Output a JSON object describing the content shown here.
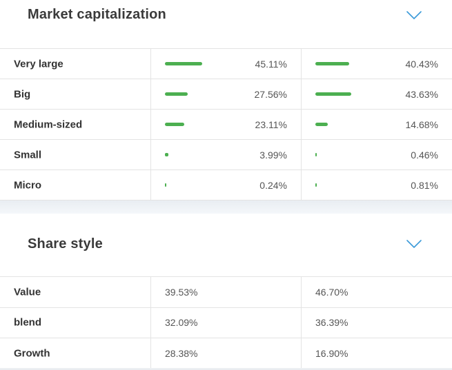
{
  "market_cap": {
    "title": "Market capitalization",
    "chevron_icon": "chevron-down-icon",
    "accent_color": "#4caf50",
    "rows": [
      {
        "label": "Very large",
        "v1": "45.11%",
        "v1_frac": 0.4511,
        "v2": "40.43%",
        "v2_frac": 0.4043
      },
      {
        "label": "Big",
        "v1": "27.56%",
        "v1_frac": 0.2756,
        "v2": "43.63%",
        "v2_frac": 0.4363
      },
      {
        "label": "Medium-sized",
        "v1": "23.11%",
        "v1_frac": 0.2311,
        "v2": "14.68%",
        "v2_frac": 0.1468
      },
      {
        "label": "Small",
        "v1": "3.99%",
        "v1_frac": 0.0399,
        "v2": "0.46%",
        "v2_frac": 0.0046
      },
      {
        "label": "Micro",
        "v1": "0.24%",
        "v1_frac": 0.0024,
        "v2": "0.81%",
        "v2_frac": 0.0081
      }
    ]
  },
  "share_style": {
    "title": "Share style",
    "chevron_icon": "chevron-down-icon",
    "rows": [
      {
        "label": "Value",
        "v1": "39.53%",
        "v2": "46.70%"
      },
      {
        "label": "blend",
        "v1": "32.09%",
        "v2": "36.39%"
      },
      {
        "label": "Growth",
        "v1": "28.38%",
        "v2": "16.90%"
      }
    ]
  }
}
